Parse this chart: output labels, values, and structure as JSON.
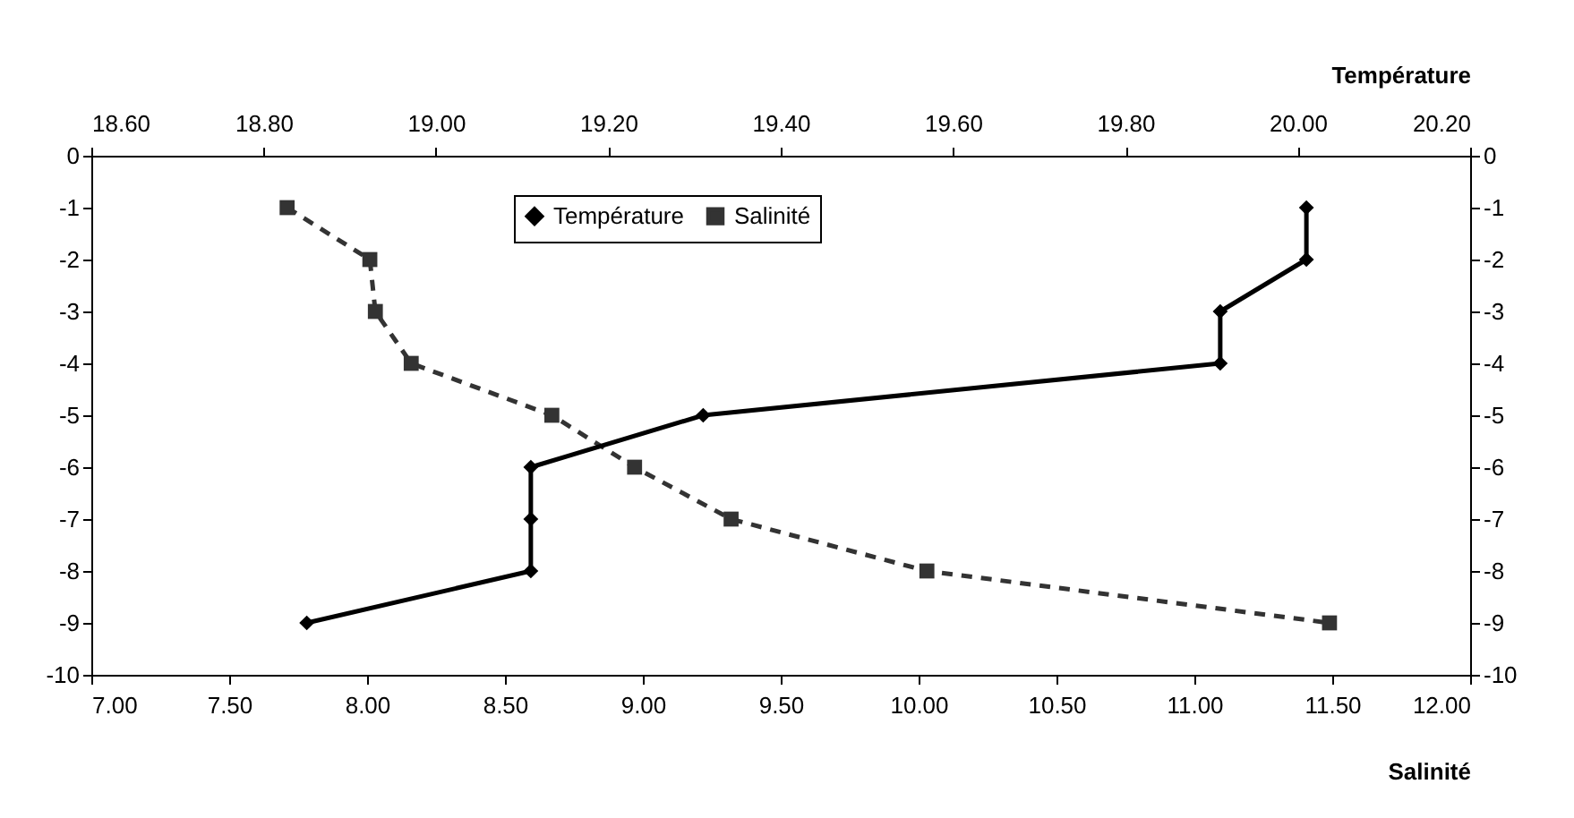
{
  "chart_data": {
    "type": "line",
    "xlabel": "Salinité",
    "x2label": "Température",
    "xlim": [
      7,
      12
    ],
    "xticks": [
      {
        "value": 7,
        "label": "7.00"
      },
      {
        "value": 7.5,
        "label": "7.50"
      },
      {
        "value": 8,
        "label": "8.00"
      },
      {
        "value": 8.5,
        "label": "8.50"
      },
      {
        "value": 9,
        "label": "9.00"
      },
      {
        "value": 9.5,
        "label": "9.50"
      },
      {
        "value": 10,
        "label": "10.00"
      },
      {
        "value": 10.5,
        "label": "10.50"
      },
      {
        "value": 11,
        "label": "11.00"
      },
      {
        "value": 11.5,
        "label": "11.50"
      },
      {
        "value": 12,
        "label": "12.00"
      }
    ],
    "x2lim": [
      18.6,
      20.2
    ],
    "x2ticks": [
      {
        "value": 18.6,
        "label": "18.60"
      },
      {
        "value": 18.8,
        "label": "18.80"
      },
      {
        "value": 19,
        "label": "19.00"
      },
      {
        "value": 19.2,
        "label": "19.20"
      },
      {
        "value": 19.4,
        "label": "19.40"
      },
      {
        "value": 19.6,
        "label": "19.60"
      },
      {
        "value": 19.8,
        "label": "19.80"
      },
      {
        "value": 20,
        "label": "20.00"
      },
      {
        "value": 20.2,
        "label": "20.20"
      }
    ],
    "ylim": [
      -10,
      0
    ],
    "yticks": [
      0,
      -1,
      -2,
      -3,
      -4,
      -5,
      -6,
      -7,
      -8,
      -9,
      -10
    ],
    "y2lim": [
      -10,
      0
    ],
    "y2ticks": [
      0,
      -1,
      -2,
      -3,
      -4,
      -5,
      -6,
      -7,
      -8,
      -9,
      -10
    ],
    "grid": false,
    "legend": "top",
    "series": [
      {
        "name": "Température",
        "axis": "x2",
        "color": "#000000",
        "marker": "diamond",
        "line_style": "solid",
        "x": [
          20.01,
          20.01,
          19.91,
          19.91,
          19.31,
          19.11,
          19.11,
          19.11,
          18.85
        ],
        "values": [
          -1,
          -2,
          -3,
          -4,
          -5,
          -6,
          -7,
          -8,
          -9
        ]
      },
      {
        "name": "Salinité",
        "color": "#333333",
        "marker": "square",
        "line_style": "dashed",
        "x": [
          7.71,
          8.01,
          8.03,
          8.16,
          8.67,
          8.97,
          9.32,
          10.03,
          11.49
        ],
        "values": [
          -1,
          -2,
          -3,
          -4,
          -5,
          -6,
          -7,
          -8,
          -9
        ]
      }
    ]
  }
}
